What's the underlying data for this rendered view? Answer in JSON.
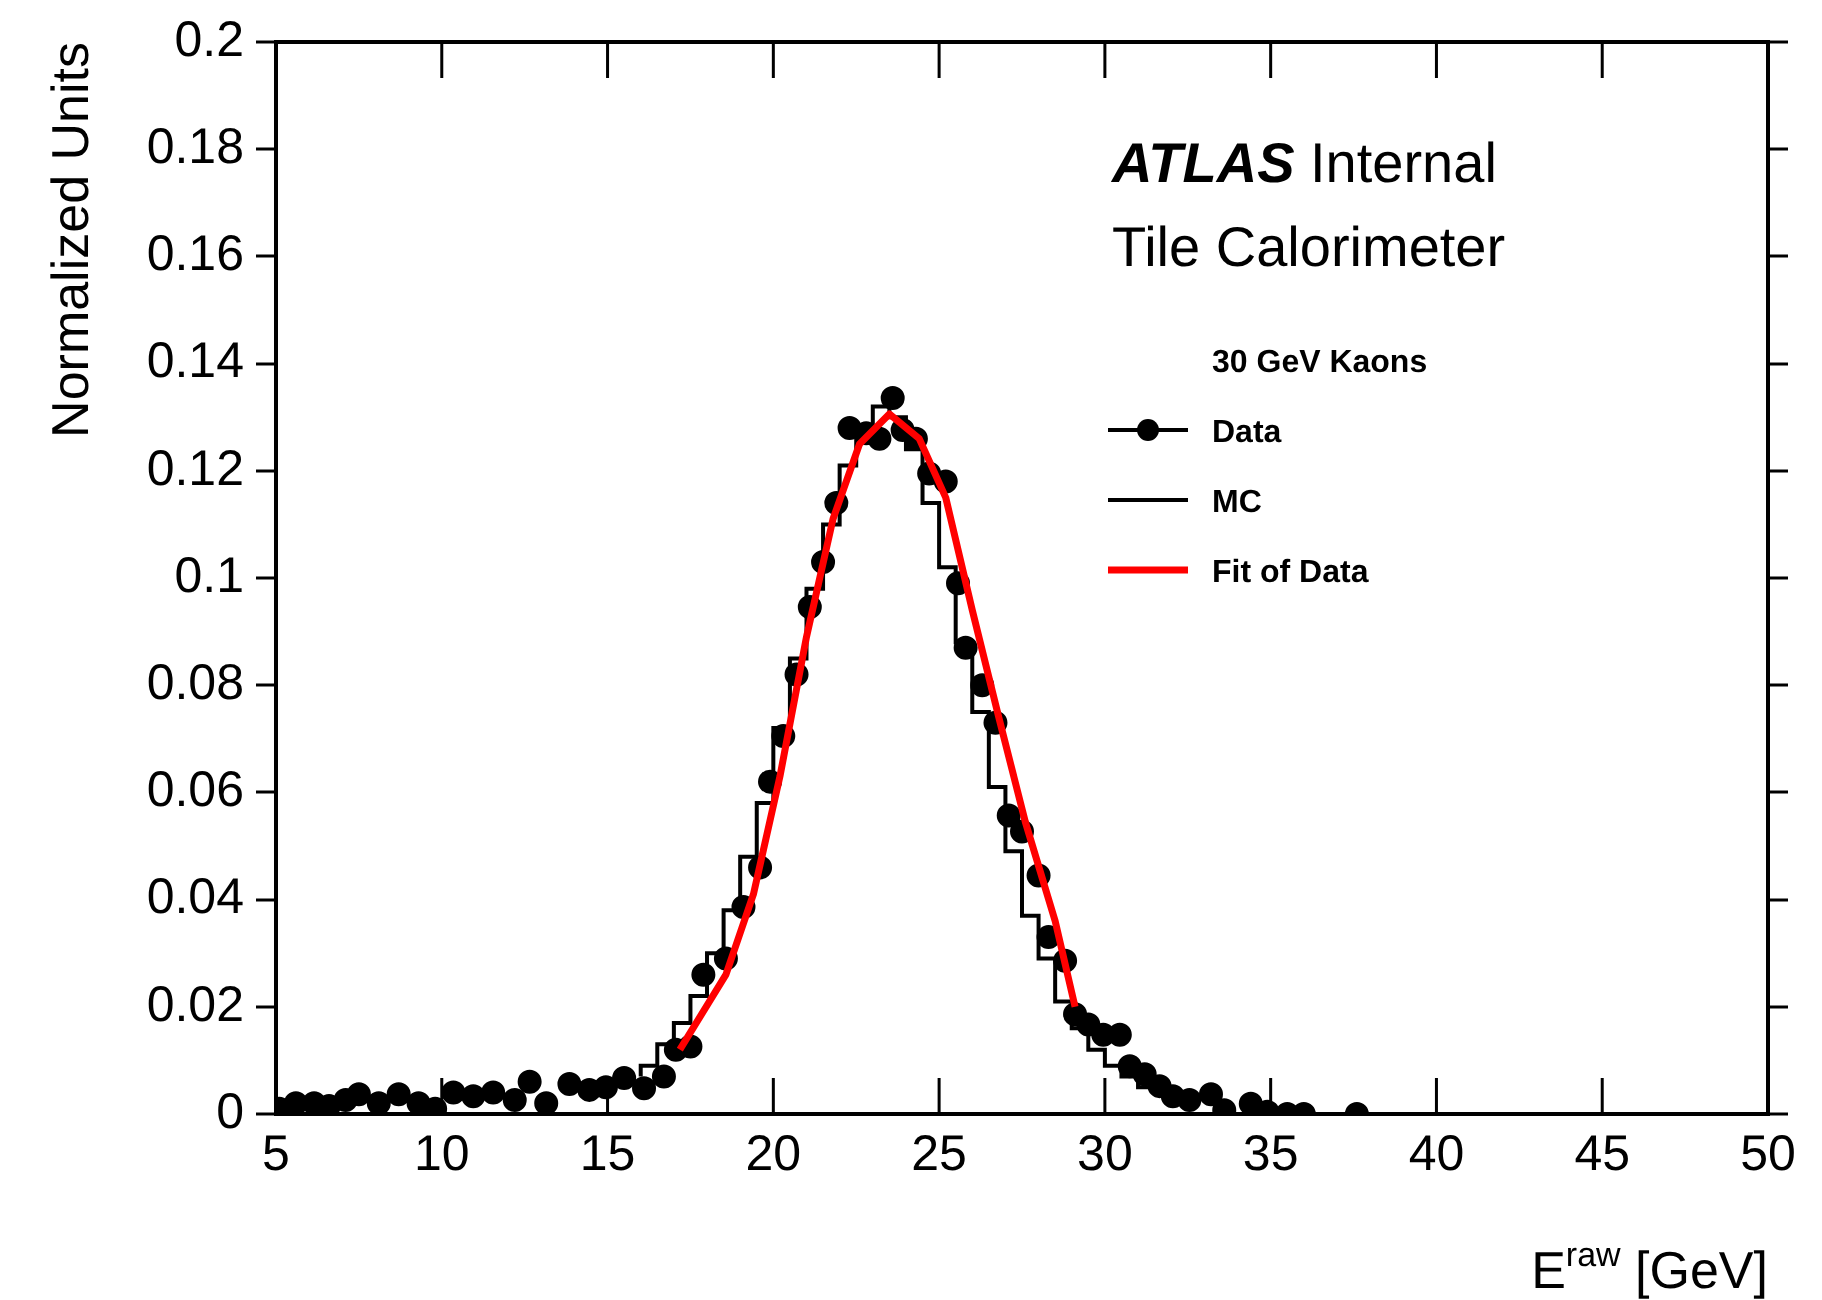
{
  "chart_data": {
    "type": "scatter",
    "xlabel": "E$^{raw}$ [GeV]",
    "ylabel": "Normalized Units",
    "legend_title": "30 GeV Kaons",
    "legend": "top right",
    "grid": false,
    "annotations": [
      "ATLAS Internal",
      "Tile Calorimeter"
    ],
    "xlim": [
      5,
      50
    ],
    "xticks": [
      5,
      10,
      15,
      20,
      25,
      30,
      35,
      40,
      45,
      50
    ],
    "ylim": [
      0,
      0.2
    ],
    "yticks": [
      0,
      0.02,
      0.04,
      0.06,
      0.08,
      0.1,
      0.12,
      0.14,
      0.16,
      0.18,
      0.2
    ],
    "series": [
      {
        "name": "Data",
        "type": "scatter",
        "marker": "circle",
        "color": "#000000",
        "x": [
          5.1,
          5.6,
          6.15,
          6.6,
          7.1,
          7.5,
          8.1,
          8.7,
          9.3,
          9.8,
          10.35,
          10.95,
          11.55,
          12.2,
          12.65,
          13.15,
          13.85,
          14.45,
          14.95,
          15.5,
          16.1,
          16.7,
          17.06,
          17.5,
          17.89,
          18.57,
          19.1,
          19.6,
          19.9,
          20.3,
          20.7,
          21.1,
          21.5,
          21.9,
          22.3,
          22.8,
          23.2,
          23.6,
          23.9,
          24.3,
          24.7,
          25.2,
          25.57,
          25.8,
          26.3,
          26.7,
          27.1,
          27.5,
          28.0,
          28.3,
          28.8,
          29.1,
          29.5,
          29.95,
          30.45,
          30.75,
          31.2,
          31.65,
          32.05,
          32.55,
          33.2,
          33.6,
          34.4,
          34.9,
          35.5,
          36.0,
          37.6
        ],
        "values": [
          0.001,
          0.002,
          0.002,
          0.0015,
          0.0026,
          0.0037,
          0.002,
          0.0037,
          0.002,
          0.001,
          0.004,
          0.0033,
          0.004,
          0.0026,
          0.006,
          0.002,
          0.0056,
          0.0045,
          0.005,
          0.0067,
          0.0048,
          0.007,
          0.012,
          0.0126,
          0.026,
          0.029,
          0.0386,
          0.046,
          0.062,
          0.0705,
          0.082,
          0.0946,
          0.103,
          0.114,
          0.128,
          0.127,
          0.126,
          0.1336,
          0.1276,
          0.126,
          0.1195,
          0.118,
          0.099,
          0.087,
          0.08,
          0.073,
          0.0557,
          0.0527,
          0.0445,
          0.033,
          0.0286,
          0.0186,
          0.0167,
          0.0148,
          0.0148,
          0.0089,
          0.0074,
          0.0052,
          0.0033,
          0.0026,
          0.0037,
          0.0007,
          0.0019,
          0.0004,
          0,
          0,
          0
        ]
      },
      {
        "name": "MC",
        "type": "step",
        "color": "#000000",
        "x": [
          16,
          16.5,
          17,
          17.5,
          18,
          18.5,
          19,
          19.5,
          20,
          20.5,
          21,
          21.5,
          22,
          22.5,
          23,
          23.5,
          24,
          24.5,
          25,
          25.5,
          26,
          26.5,
          27,
          27.5,
          28,
          28.5,
          29,
          29.5,
          30,
          30.5,
          31,
          31.5,
          32
        ],
        "values": [
          0.007,
          0.009,
          0.013,
          0.017,
          0.022,
          0.03,
          0.038,
          0.048,
          0.058,
          0.072,
          0.085,
          0.098,
          0.11,
          0.121,
          0.128,
          0.132,
          0.13,
          0.124,
          0.114,
          0.102,
          0.088,
          0.075,
          0.061,
          0.049,
          0.037,
          0.029,
          0.021,
          0.016,
          0.012,
          0.009,
          0.007,
          0.005,
          0.005
        ]
      },
      {
        "name": "Fit of Data",
        "type": "line",
        "color": "#ff0000",
        "x": [
          17.18,
          18.57,
          19.4,
          20.2,
          21.0,
          21.8,
          22.6,
          23.5,
          24.4,
          25.2,
          26.0,
          26.8,
          27.6,
          28.5,
          29.1
        ],
        "values": [
          0.012,
          0.026,
          0.041,
          0.063,
          0.089,
          0.111,
          0.125,
          0.1306,
          0.126,
          0.115,
          0.094,
          0.074,
          0.0545,
          0.036,
          0.02
        ]
      }
    ]
  }
}
